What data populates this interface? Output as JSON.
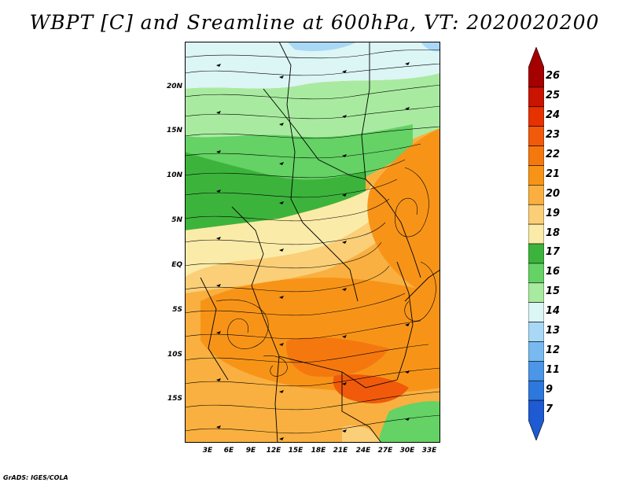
{
  "title": "WBPT [C] and Sreamline at 600hPa, VT: 2020020200",
  "credit": "GrADS: IGES/COLA",
  "map": {
    "lat_labels": [
      "20N",
      "15N",
      "10N",
      "5N",
      "EQ",
      "5S",
      "10S",
      "15S"
    ],
    "lon_labels": [
      "3E",
      "6E",
      "9E",
      "12E",
      "15E",
      "18E",
      "21E",
      "24E",
      "27E",
      "30E",
      "33E"
    ]
  },
  "colorbar": {
    "labels": [
      "26",
      "25",
      "24",
      "23",
      "22",
      "21",
      "20",
      "19",
      "18",
      "17",
      "16",
      "15",
      "14",
      "13",
      "12",
      "11",
      "9",
      "7"
    ],
    "colors": [
      "#a50000",
      "#c81400",
      "#e63200",
      "#f05a0a",
      "#f5780f",
      "#f79418",
      "#f9b040",
      "#fbcf78",
      "#fbeba8",
      "#3cb43c",
      "#64d264",
      "#a8eba0",
      "#dcf5f5",
      "#a8d8f5",
      "#78b9f0",
      "#4b96e6",
      "#2d78dc",
      "#1e5ad2"
    ]
  },
  "legend_colors": {
    "green_dark": "#3cb43c",
    "green_mid": "#64d264",
    "green_light": "#a8eba0",
    "cyan_light": "#dcf5f5",
    "blue_light": "#a8d8f5",
    "yellow_light": "#fbeba8",
    "tan": "#fbcf78",
    "orange_light": "#f9b040",
    "orange": "#f79418",
    "orange_dark": "#f5780f",
    "red_orange": "#f05a0a"
  }
}
